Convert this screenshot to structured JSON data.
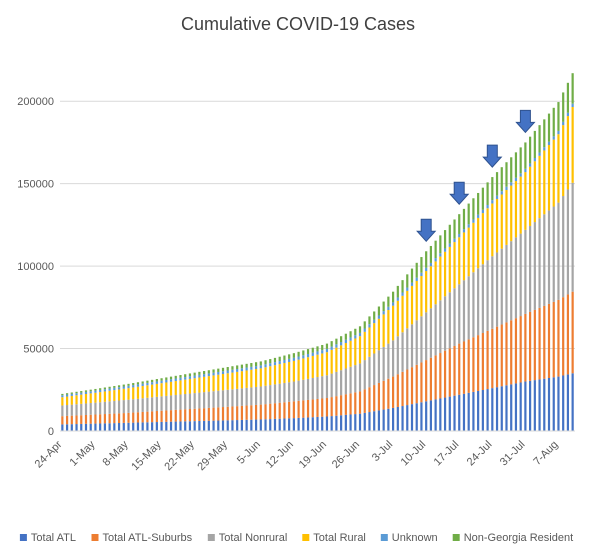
{
  "chart_data": {
    "type": "bar",
    "stacked": true,
    "title": "Cumulative COVID-19 Cases",
    "xlabel": "",
    "ylabel": "",
    "ylim": [
      0,
      225000
    ],
    "y_ticks": [
      0,
      50000,
      100000,
      150000,
      200000
    ],
    "grid": true,
    "legend_position": "bottom",
    "start_date": "2020-04-24",
    "end_date": "2020-08-10",
    "x_tick_labels": [
      "24-Apr",
      "1-May",
      "8-May",
      "15-May",
      "22-May",
      "29-May",
      "5-Jun",
      "12-Jun",
      "19-Jun",
      "26-Jun",
      "3-Jul",
      "10-Jul",
      "17-Jul",
      "24-Jul",
      "31-Jul",
      "7-Aug"
    ],
    "series": [
      {
        "name": "Total ATL",
        "color": "#4472c4",
        "x": [
          "24-Apr",
          "1-May",
          "8-May",
          "15-May",
          "22-May",
          "29-May",
          "5-Jun",
          "12-Jun",
          "19-Jun",
          "26-Jun",
          "3-Jul",
          "10-Jul",
          "17-Jul",
          "24-Jul",
          "31-Jul",
          "7-Aug",
          "10-Aug"
        ],
        "values": [
          4000,
          4500,
          5000,
          5500,
          6000,
          6500,
          7000,
          7800,
          8800,
          10500,
          14000,
          18000,
          22000,
          26000,
          30000,
          33000,
          35000
        ]
      },
      {
        "name": "Total ATL-Suburbs",
        "color": "#ed7d31",
        "x": [
          "24-Apr",
          "1-May",
          "8-May",
          "15-May",
          "22-May",
          "29-May",
          "5-Jun",
          "12-Jun",
          "19-Jun",
          "26-Jun",
          "3-Jul",
          "10-Jul",
          "17-Jul",
          "24-Jul",
          "31-Jul",
          "7-Aug",
          "10-Aug"
        ],
        "values": [
          5000,
          5500,
          6000,
          6800,
          7500,
          8200,
          9000,
          10200,
          11200,
          13500,
          19000,
          25000,
          31000,
          36000,
          41000,
          46500,
          49500
        ]
      },
      {
        "name": "Total Nonrural",
        "color": "#a5a5a5",
        "x": [
          "24-Apr",
          "1-May",
          "8-May",
          "15-May",
          "22-May",
          "29-May",
          "5-Jun",
          "12-Jun",
          "19-Jun",
          "26-Jun",
          "3-Jul",
          "10-Jul",
          "17-Jul",
          "24-Jul",
          "31-Jul",
          "7-Aug",
          "10-Aug"
        ],
        "values": [
          6500,
          7200,
          8000,
          8700,
          9500,
          10300,
          11000,
          12000,
          13800,
          17000,
          22000,
          29000,
          36000,
          44000,
          51000,
          59000,
          66000
        ]
      },
      {
        "name": "Total Rural",
        "color": "#ffc000",
        "x": [
          "24-Apr",
          "1-May",
          "8-May",
          "15-May",
          "22-May",
          "29-May",
          "5-Jun",
          "12-Jun",
          "19-Jun",
          "26-Jun",
          "3-Jul",
          "10-Jul",
          "17-Jul",
          "24-Jul",
          "31-Jul",
          "7-Aug",
          "10-Aug"
        ],
        "values": [
          5000,
          6000,
          7000,
          8000,
          9000,
          10000,
          11000,
          12500,
          14000,
          16500,
          21000,
          25000,
          28500,
          32000,
          35000,
          41500,
          46000
        ]
      },
      {
        "name": "Unknown",
        "color": "#5b9bd5",
        "x": [
          "24-Apr",
          "1-May",
          "8-May",
          "15-May",
          "22-May",
          "29-May",
          "5-Jun",
          "12-Jun",
          "19-Jun",
          "26-Jun",
          "3-Jul",
          "10-Jul",
          "17-Jul",
          "24-Jul",
          "31-Jul",
          "7-Aug",
          "10-Aug"
        ],
        "values": [
          1200,
          1300,
          1400,
          1500,
          1600,
          1700,
          1800,
          1900,
          2000,
          2000,
          2000,
          2000,
          2000,
          2000,
          2000,
          2000,
          2000
        ]
      },
      {
        "name": "Non-Georgia Resident",
        "color": "#70ad47",
        "x": [
          "24-Apr",
          "1-May",
          "8-May",
          "15-May",
          "22-May",
          "29-May",
          "5-Jun",
          "12-Jun",
          "19-Jun",
          "26-Jun",
          "3-Jul",
          "10-Jul",
          "17-Jul",
          "24-Jul",
          "31-Jul",
          "7-Aug",
          "10-Aug"
        ],
        "values": [
          800,
          1000,
          1200,
          1500,
          1800,
          2100,
          2400,
          2800,
          3200,
          4000,
          6500,
          10000,
          12000,
          14000,
          16000,
          17500,
          18500
        ]
      }
    ],
    "annotations": [
      {
        "type": "arrow",
        "color": "#4472c4",
        "x": "10-Jul"
      },
      {
        "type": "arrow",
        "color": "#4472c4",
        "x": "17-Jul"
      },
      {
        "type": "arrow",
        "color": "#4472c4",
        "x": "24-Jul"
      },
      {
        "type": "arrow",
        "color": "#4472c4",
        "x": "31-Jul"
      }
    ]
  }
}
